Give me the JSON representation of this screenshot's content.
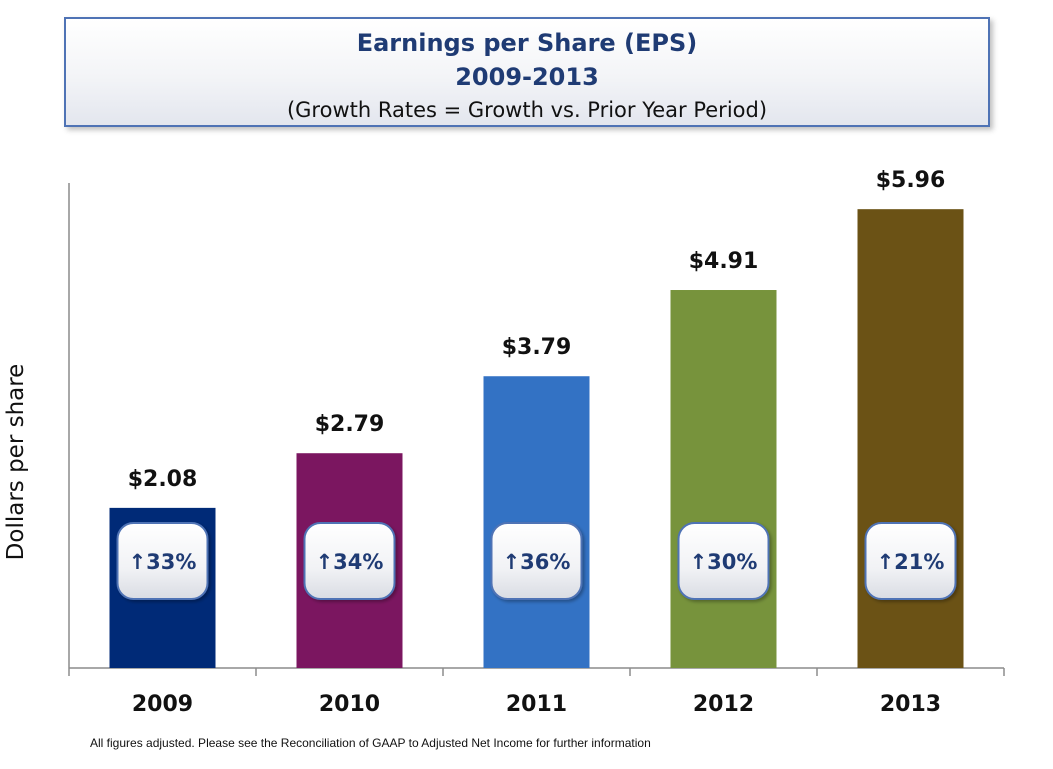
{
  "header": {
    "title": "Earnings per Share (EPS)",
    "subtitle": "2009-2013",
    "note": "(Growth Rates = Growth vs. Prior Year Period)"
  },
  "footnote": "All figures adjusted. Please see the Reconciliation of GAAP to Adjusted Net Income for further information",
  "chart_data": {
    "type": "bar",
    "title": "Earnings per Share (EPS)",
    "subtitle": "2009-2013",
    "xlabel": "",
    "ylabel": "Dollars per share",
    "categories": [
      "2009",
      "2010",
      "2011",
      "2012",
      "2013"
    ],
    "values": [
      2.08,
      2.79,
      3.79,
      4.91,
      5.96
    ],
    "data_labels": [
      "$2.08",
      "$2.79",
      "$3.79",
      "$4.91",
      "$5.96"
    ],
    "growth_labels": [
      "↑33%",
      "↑34%",
      "↑36%",
      "↑30%",
      "↑21%"
    ],
    "colors": [
      "#002a77",
      "#7b1660",
      "#3372c4",
      "#77933c",
      "#6b5215"
    ],
    "ylim": [
      0,
      6.3
    ],
    "grid": false,
    "legend": "none"
  }
}
